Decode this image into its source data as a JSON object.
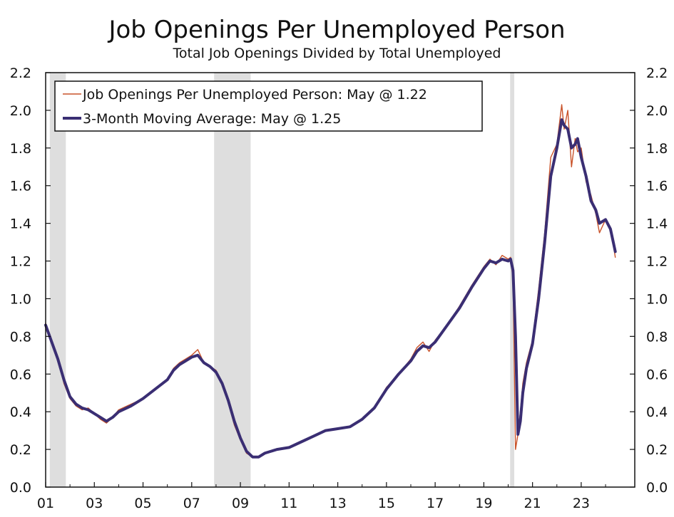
{
  "chart_data": {
    "type": "line",
    "title": "Job Openings Per Unemployed Person",
    "subtitle": "Total Job Openings Divided by Total Unemployed",
    "xlabel": "",
    "ylabel": "",
    "xlim": [
      2001.0,
      2025.2
    ],
    "ylim": [
      0.0,
      2.2
    ],
    "y_ticks": [
      "0.0",
      "0.2",
      "0.4",
      "0.6",
      "0.8",
      "1.0",
      "1.2",
      "1.4",
      "1.6",
      "1.8",
      "2.0",
      "2.2"
    ],
    "x_ticks": [
      "01",
      "03",
      "05",
      "07",
      "09",
      "11",
      "13",
      "15",
      "17",
      "19",
      "21",
      "23"
    ],
    "recessions": [
      [
        2001.17,
        2001.83
      ],
      [
        2007.92,
        2009.42
      ],
      [
        2020.08,
        2020.25
      ]
    ],
    "legend": {
      "position": "top-left",
      "items": [
        "Job Openings Per Unemployed Person: May @ 1.22",
        "3-Month Moving Average: May @ 1.25"
      ]
    },
    "colors": {
      "monthly": "#c9532a",
      "average": "#3a2e73",
      "recession": "#dedede"
    },
    "series": [
      {
        "name": "Job Openings Per Unemployed Person: May @ 1.22",
        "style": "thin",
        "x": [
          2001.0,
          2001.25,
          2001.5,
          2001.75,
          2002.0,
          2002.25,
          2002.5,
          2002.75,
          2003.0,
          2003.25,
          2003.5,
          2003.75,
          2004.0,
          2004.5,
          2005.0,
          2005.5,
          2006.0,
          2006.25,
          2006.5,
          2006.75,
          2007.0,
          2007.25,
          2007.5,
          2007.75,
          2008.0,
          2008.25,
          2008.5,
          2008.75,
          2009.0,
          2009.25,
          2009.5,
          2009.75,
          2010.0,
          2010.5,
          2011.0,
          2011.5,
          2012.0,
          2012.5,
          2013.0,
          2013.5,
          2014.0,
          2014.5,
          2015.0,
          2015.5,
          2016.0,
          2016.25,
          2016.5,
          2016.75,
          2017.0,
          2017.5,
          2018.0,
          2018.5,
          2019.0,
          2019.25,
          2019.5,
          2019.75,
          2020.0,
          2020.1,
          2020.2,
          2020.3,
          2020.4,
          2020.5,
          2020.6,
          2020.75,
          2021.0,
          2021.25,
          2021.5,
          2021.75,
          2022.0,
          2022.2,
          2022.3,
          2022.45,
          2022.6,
          2022.75,
          2022.85,
          2023.0,
          2023.2,
          2023.4,
          2023.6,
          2023.75,
          2024.0,
          2024.2,
          2024.4
        ],
        "values": [
          0.87,
          0.76,
          0.69,
          0.55,
          0.47,
          0.43,
          0.41,
          0.42,
          0.39,
          0.36,
          0.34,
          0.37,
          0.41,
          0.44,
          0.47,
          0.52,
          0.57,
          0.63,
          0.66,
          0.68,
          0.7,
          0.73,
          0.66,
          0.64,
          0.62,
          0.55,
          0.45,
          0.33,
          0.25,
          0.18,
          0.16,
          0.16,
          0.18,
          0.2,
          0.21,
          0.24,
          0.27,
          0.3,
          0.31,
          0.32,
          0.36,
          0.42,
          0.53,
          0.6,
          0.68,
          0.74,
          0.77,
          0.72,
          0.78,
          0.86,
          0.96,
          1.07,
          1.17,
          1.21,
          1.18,
          1.23,
          1.21,
          1.22,
          1.1,
          0.2,
          0.28,
          0.4,
          0.55,
          0.66,
          0.78,
          1.05,
          1.35,
          1.75,
          1.82,
          2.03,
          1.9,
          2.0,
          1.7,
          1.85,
          1.78,
          1.8,
          1.62,
          1.55,
          1.45,
          1.35,
          1.42,
          1.38,
          1.22
        ]
      },
      {
        "name": "3-Month Moving Average: May @ 1.25",
        "style": "thick",
        "x": [
          2001.0,
          2001.25,
          2001.5,
          2001.75,
          2002.0,
          2002.25,
          2002.5,
          2002.75,
          2003.0,
          2003.25,
          2003.5,
          2003.75,
          2004.0,
          2004.5,
          2005.0,
          2005.5,
          2006.0,
          2006.25,
          2006.5,
          2006.75,
          2007.0,
          2007.25,
          2007.5,
          2007.75,
          2008.0,
          2008.25,
          2008.5,
          2008.75,
          2009.0,
          2009.25,
          2009.5,
          2009.75,
          2010.0,
          2010.5,
          2011.0,
          2011.5,
          2012.0,
          2012.5,
          2013.0,
          2013.5,
          2014.0,
          2014.5,
          2015.0,
          2015.5,
          2016.0,
          2016.25,
          2016.5,
          2016.75,
          2017.0,
          2017.5,
          2018.0,
          2018.5,
          2019.0,
          2019.25,
          2019.5,
          2019.75,
          2020.0,
          2020.1,
          2020.2,
          2020.3,
          2020.4,
          2020.5,
          2020.6,
          2020.75,
          2021.0,
          2021.25,
          2021.5,
          2021.75,
          2022.0,
          2022.2,
          2022.3,
          2022.45,
          2022.6,
          2022.75,
          2022.85,
          2023.0,
          2023.2,
          2023.4,
          2023.6,
          2023.75,
          2024.0,
          2024.2,
          2024.4
        ],
        "values": [
          0.86,
          0.77,
          0.68,
          0.57,
          0.48,
          0.44,
          0.42,
          0.41,
          0.39,
          0.37,
          0.35,
          0.37,
          0.4,
          0.43,
          0.47,
          0.52,
          0.57,
          0.62,
          0.65,
          0.67,
          0.69,
          0.7,
          0.66,
          0.64,
          0.61,
          0.55,
          0.46,
          0.35,
          0.26,
          0.19,
          0.16,
          0.16,
          0.18,
          0.2,
          0.21,
          0.24,
          0.27,
          0.3,
          0.31,
          0.32,
          0.36,
          0.42,
          0.52,
          0.6,
          0.67,
          0.72,
          0.75,
          0.74,
          0.77,
          0.86,
          0.95,
          1.06,
          1.16,
          1.2,
          1.19,
          1.21,
          1.2,
          1.21,
          1.15,
          0.8,
          0.28,
          0.35,
          0.5,
          0.63,
          0.76,
          1.0,
          1.3,
          1.65,
          1.8,
          1.95,
          1.92,
          1.9,
          1.8,
          1.82,
          1.85,
          1.75,
          1.65,
          1.52,
          1.47,
          1.4,
          1.42,
          1.37,
          1.25
        ]
      }
    ]
  }
}
